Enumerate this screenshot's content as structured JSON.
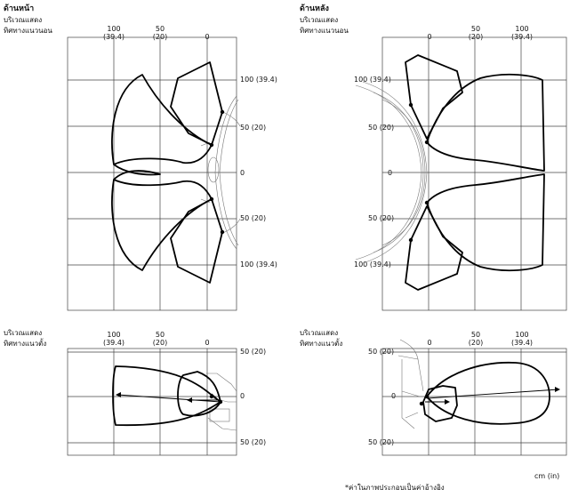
{
  "front": {
    "section_title": "ด้านหน้า",
    "horizontal": {
      "label_line1": "บริเวณแสดง",
      "label_line2": "ทิศทางแนวนอน",
      "x_ticks": [
        {
          "top": "100",
          "bottom": "(39.4)"
        },
        {
          "top": "50",
          "bottom": "(20)"
        },
        {
          "top": "0",
          "bottom": ""
        }
      ],
      "y_ticks": [
        "100 (39.4)",
        "50 (20)",
        "0",
        "50 (20)",
        "100 (39.4)"
      ]
    },
    "vertical": {
      "label_line1": "บริเวณแสดง",
      "label_line2": "ทิศทางแนวตั้ง",
      "x_ticks": [
        {
          "top": "100",
          "bottom": "(39.4)"
        },
        {
          "top": "50",
          "bottom": "(20)"
        },
        {
          "top": "0",
          "bottom": ""
        }
      ],
      "y_ticks": [
        "50 (20)",
        "0",
        "50 (20)"
      ]
    }
  },
  "rear": {
    "section_title": "ด้านหลัง",
    "horizontal": {
      "label_line1": "บริเวณแสดง",
      "label_line2": "ทิศทางแนวนอน",
      "x_ticks": [
        {
          "top": "0",
          "bottom": ""
        },
        {
          "top": "50",
          "bottom": "(20)"
        },
        {
          "top": "100",
          "bottom": "(39.4)"
        }
      ],
      "y_ticks": [
        "100 (39.4)",
        "50 (20)",
        "0",
        "50 (20)",
        "100 (39.4)"
      ]
    },
    "vertical": {
      "label_line1": "บริเวณแสดง",
      "label_line2": "ทิศทางแนวตั้ง",
      "x_ticks": [
        {
          "top": "0",
          "bottom": ""
        },
        {
          "top": "50",
          "bottom": "(20)"
        },
        {
          "top": "100",
          "bottom": "(39.4)"
        }
      ],
      "y_ticks": [
        "50 (20)",
        "0",
        "50 (20)"
      ]
    }
  },
  "unit_label": "cm (in)",
  "footnote": "*ค่าในภาพประกอบเป็นค่าอ้างอิง"
}
